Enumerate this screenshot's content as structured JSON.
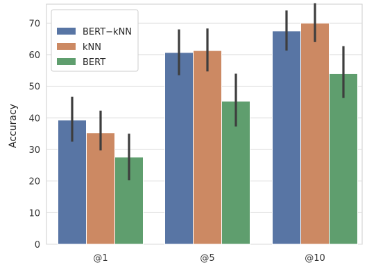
{
  "chart_data": {
    "type": "bar",
    "title": "",
    "xlabel": "",
    "ylabel": "Accuracy",
    "categories": [
      "@1",
      "@5",
      "@10"
    ],
    "ylim": [
      0,
      76
    ],
    "yticks": [
      0,
      10,
      20,
      30,
      40,
      50,
      60,
      70
    ],
    "grid": true,
    "legend_position": "top-left",
    "series": [
      {
        "name": "BERT−kNN",
        "color": "#5875a4",
        "values": [
          39.3,
          60.7,
          67.5
        ],
        "error_low": [
          32.5,
          53.5,
          61.3
        ],
        "error_high": [
          46.7,
          68.0,
          74.0
        ]
      },
      {
        "name": "kNN",
        "color": "#cc8963",
        "values": [
          35.3,
          61.3,
          70.0
        ],
        "error_low": [
          29.7,
          54.7,
          64.0
        ],
        "error_high": [
          42.3,
          68.3,
          76.3
        ]
      },
      {
        "name": "BERT",
        "color": "#5f9e6e",
        "values": [
          27.6,
          45.3,
          54.0
        ],
        "error_low": [
          20.3,
          37.3,
          46.3
        ],
        "error_high": [
          35.0,
          54.0,
          62.7
        ]
      }
    ]
  }
}
